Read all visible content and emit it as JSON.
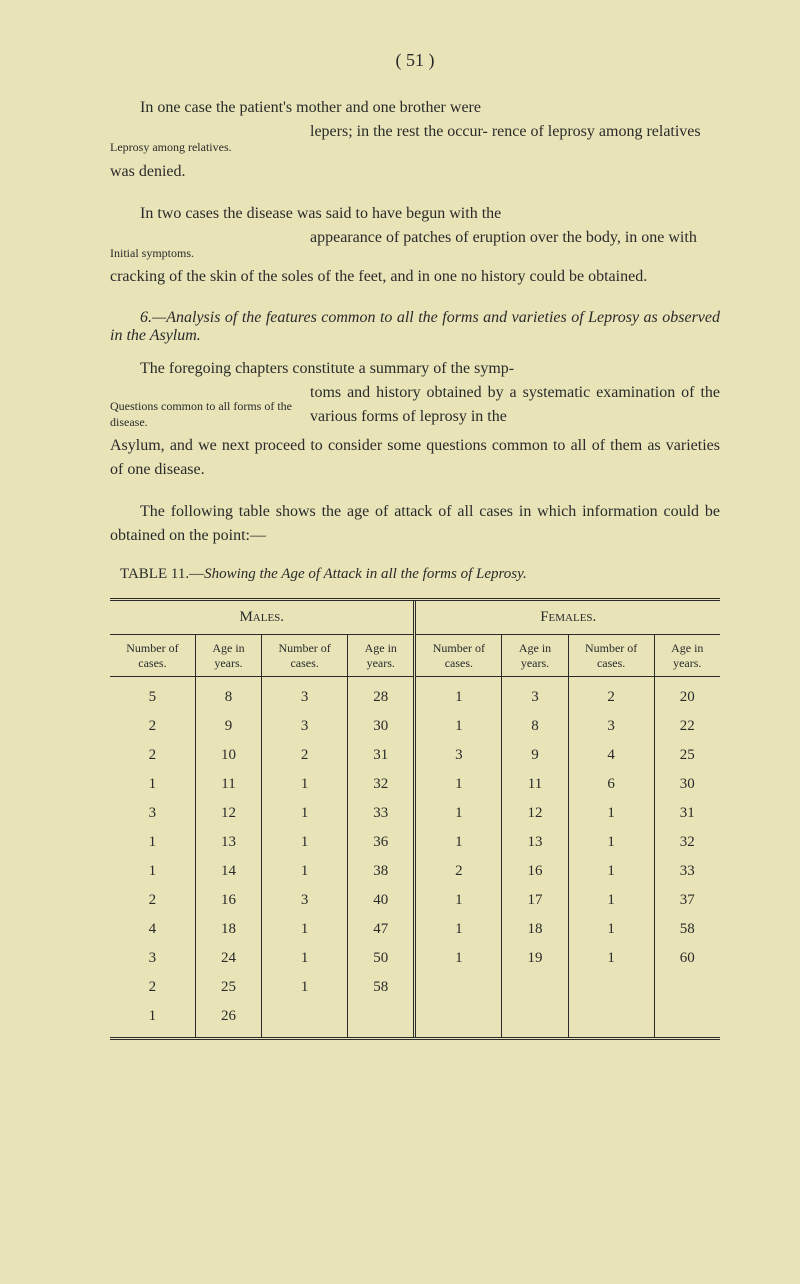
{
  "page_number_text": "( 51 )",
  "para1": {
    "line1_a": "In one case the patient's mother and one brother were",
    "note": "Leprosy among relatives.",
    "right1": "lepers; in the rest the occur-",
    "right2": "rence of leprosy among relatives",
    "line_last": "was denied."
  },
  "para2": {
    "line1": "In two cases the disease was said to have begun with the",
    "note": "Initial symptoms.",
    "right1": "appearance of patches of eruption",
    "right2": "over the body, in one with",
    "line_last": "cracking of the skin of the soles of the feet, and in one no history could be obtained."
  },
  "section6": {
    "title": "6.—Analysis of the features common to all the forms and varieties of Leprosy as observed in the Asylum."
  },
  "para3": {
    "line1": "The foregoing chapters constitute a summary of the symp-",
    "note": "Questions common to all forms of the disease.",
    "right1": "toms and history obtained by a",
    "right2": "systematic examination of the",
    "right3": "various forms of leprosy in the",
    "line_last": "Asylum, and we next proceed to consider some questions common to all of them as varieties of one disease."
  },
  "para4": "The following table shows the age of attack of all cases in which information could be obtained on the point:—",
  "table_caption": "TABLE 11.—Showing the Age of Attack in all the forms of Leprosy.",
  "table": {
    "group_headers": [
      "Males.",
      "Females."
    ],
    "col_headers": [
      "Number of cases.",
      "Age in years.",
      "Number of cases.",
      "Age in years.",
      "Number of cases.",
      "Age in years.",
      "Number of cases.",
      "Age in years."
    ],
    "rows": [
      [
        "5",
        "8",
        "3",
        "28",
        "1",
        "3",
        "2",
        "20"
      ],
      [
        "2",
        "9",
        "3",
        "30",
        "1",
        "8",
        "3",
        "22"
      ],
      [
        "2",
        "10",
        "2",
        "31",
        "3",
        "9",
        "4",
        "25"
      ],
      [
        "1",
        "11",
        "1",
        "32",
        "1",
        "11",
        "6",
        "30"
      ],
      [
        "3",
        "12",
        "1",
        "33",
        "1",
        "12",
        "1",
        "31"
      ],
      [
        "1",
        "13",
        "1",
        "36",
        "1",
        "13",
        "1",
        "32"
      ],
      [
        "1",
        "14",
        "1",
        "38",
        "2",
        "16",
        "1",
        "33"
      ],
      [
        "2",
        "16",
        "3",
        "40",
        "1",
        "17",
        "1",
        "37"
      ],
      [
        "4",
        "18",
        "1",
        "47",
        "1",
        "18",
        "1",
        "58"
      ],
      [
        "3",
        "24",
        "1",
        "50",
        "1",
        "19",
        "1",
        "60"
      ],
      [
        "2",
        "25",
        "1",
        "58",
        "",
        "",
        "",
        ""
      ],
      [
        "1",
        "26",
        "",
        "",
        "",
        "",
        "",
        ""
      ]
    ]
  }
}
